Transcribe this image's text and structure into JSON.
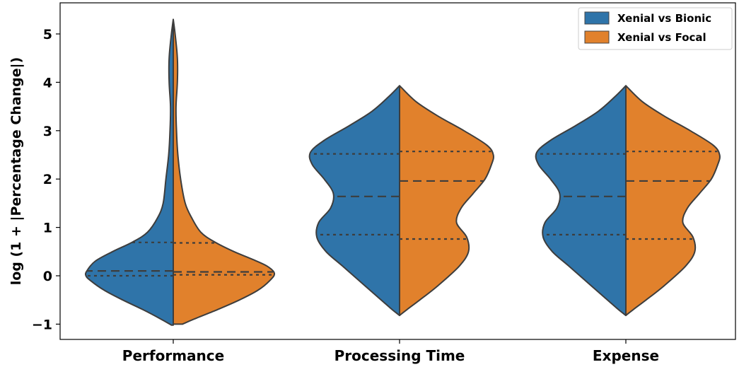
{
  "chart_data": {
    "type": "violin",
    "split": true,
    "ylabel": "log (1 + |Percentage Change|)",
    "xlabel": "",
    "ylim": [
      -1.05,
      5.6
    ],
    "yticks": [
      -1,
      0,
      1,
      2,
      3,
      4,
      5
    ],
    "ytick_labels": [
      "−1",
      "0",
      "1",
      "2",
      "3",
      "4",
      "5"
    ],
    "categories": [
      "Performance",
      "Processing Time",
      "Expense"
    ],
    "legend": {
      "placement": "top-right"
    },
    "series": [
      {
        "name": "Xenial vs Bionic",
        "color": "#2f74a9",
        "violins": [
          {
            "category": "Performance",
            "quartiles": {
              "q1": 0.0,
              "median": 0.1,
              "q3": 0.69
            },
            "profile": [
              [
                -1.02,
                0.02
              ],
              [
                -0.9,
                0.13
              ],
              [
                -0.7,
                0.33
              ],
              [
                -0.5,
                0.55
              ],
              [
                -0.3,
                0.75
              ],
              [
                -0.1,
                0.9
              ],
              [
                0.0,
                0.95
              ],
              [
                0.1,
                0.94
              ],
              [
                0.3,
                0.85
              ],
              [
                0.5,
                0.66
              ],
              [
                0.7,
                0.44
              ],
              [
                0.9,
                0.28
              ],
              [
                1.2,
                0.17
              ],
              [
                1.5,
                0.11
              ],
              [
                2.0,
                0.08
              ],
              [
                2.5,
                0.05
              ],
              [
                3.0,
                0.035
              ],
              [
                3.5,
                0.03
              ],
              [
                4.0,
                0.045
              ],
              [
                4.5,
                0.045
              ],
              [
                5.0,
                0.02
              ],
              [
                5.3,
                0.0
              ]
            ]
          },
          {
            "category": "Processing Time",
            "quartiles": {
              "q1": 0.85,
              "median": 1.64,
              "q3": 2.52
            },
            "profile": [
              [
                -0.82,
                0.0
              ],
              [
                -0.7,
                0.08
              ],
              [
                -0.5,
                0.2
              ],
              [
                -0.2,
                0.38
              ],
              [
                0.2,
                0.62
              ],
              [
                0.5,
                0.8
              ],
              [
                0.8,
                0.9
              ],
              [
                1.1,
                0.88
              ],
              [
                1.4,
                0.75
              ],
              [
                1.7,
                0.72
              ],
              [
                2.0,
                0.82
              ],
              [
                2.3,
                0.95
              ],
              [
                2.55,
                0.97
              ],
              [
                2.8,
                0.82
              ],
              [
                3.1,
                0.55
              ],
              [
                3.4,
                0.3
              ],
              [
                3.7,
                0.12
              ],
              [
                3.93,
                0.0
              ]
            ]
          },
          {
            "category": "Expense",
            "quartiles": {
              "q1": 0.85,
              "median": 1.64,
              "q3": 2.52
            },
            "profile": [
              [
                -0.82,
                0.0
              ],
              [
                -0.7,
                0.08
              ],
              [
                -0.5,
                0.2
              ],
              [
                -0.2,
                0.38
              ],
              [
                0.2,
                0.62
              ],
              [
                0.5,
                0.8
              ],
              [
                0.8,
                0.9
              ],
              [
                1.1,
                0.88
              ],
              [
                1.4,
                0.75
              ],
              [
                1.7,
                0.72
              ],
              [
                2.0,
                0.82
              ],
              [
                2.3,
                0.95
              ],
              [
                2.55,
                0.97
              ],
              [
                2.8,
                0.82
              ],
              [
                3.1,
                0.55
              ],
              [
                3.4,
                0.3
              ],
              [
                3.7,
                0.12
              ],
              [
                3.93,
                0.0
              ]
            ]
          }
        ]
      },
      {
        "name": "Xenial vs Focal",
        "color": "#e1812c",
        "violins": [
          {
            "category": "Performance",
            "quartiles": {
              "q1": 0.02,
              "median": 0.08,
              "q3": 0.68
            },
            "profile": [
              [
                -1.0,
                0.1
              ],
              [
                -0.9,
                0.22
              ],
              [
                -0.7,
                0.48
              ],
              [
                -0.5,
                0.72
              ],
              [
                -0.3,
                0.92
              ],
              [
                -0.1,
                1.05
              ],
              [
                0.05,
                1.1
              ],
              [
                0.2,
                1.02
              ],
              [
                0.35,
                0.85
              ],
              [
                0.5,
                0.66
              ],
              [
                0.7,
                0.45
              ],
              [
                0.9,
                0.3
              ],
              [
                1.2,
                0.2
              ],
              [
                1.5,
                0.13
              ],
              [
                2.0,
                0.08
              ],
              [
                2.5,
                0.05
              ],
              [
                3.0,
                0.035
              ],
              [
                3.5,
                0.03
              ],
              [
                4.0,
                0.045
              ],
              [
                4.5,
                0.045
              ],
              [
                5.0,
                0.02
              ],
              [
                5.3,
                0.0
              ]
            ]
          },
          {
            "category": "Processing Time",
            "quartiles": {
              "q1": 0.76,
              "median": 1.96,
              "q3": 2.57
            },
            "profile": [
              [
                -0.82,
                0.0
              ],
              [
                -0.7,
                0.08
              ],
              [
                -0.5,
                0.22
              ],
              [
                -0.2,
                0.42
              ],
              [
                0.2,
                0.65
              ],
              [
                0.5,
                0.75
              ],
              [
                0.8,
                0.73
              ],
              [
                1.1,
                0.62
              ],
              [
                1.4,
                0.67
              ],
              [
                1.7,
                0.8
              ],
              [
                2.0,
                0.93
              ],
              [
                2.3,
                1.0
              ],
              [
                2.5,
                1.02
              ],
              [
                2.7,
                0.95
              ],
              [
                3.0,
                0.7
              ],
              [
                3.3,
                0.42
              ],
              [
                3.6,
                0.18
              ],
              [
                3.93,
                0.0
              ]
            ]
          },
          {
            "category": "Expense",
            "quartiles": {
              "q1": 0.76,
              "median": 1.96,
              "q3": 2.57
            },
            "profile": [
              [
                -0.82,
                0.0
              ],
              [
                -0.7,
                0.08
              ],
              [
                -0.5,
                0.22
              ],
              [
                -0.2,
                0.42
              ],
              [
                0.2,
                0.65
              ],
              [
                0.5,
                0.75
              ],
              [
                0.8,
                0.73
              ],
              [
                1.1,
                0.62
              ],
              [
                1.4,
                0.67
              ],
              [
                1.7,
                0.8
              ],
              [
                2.0,
                0.93
              ],
              [
                2.3,
                1.0
              ],
              [
                2.5,
                1.02
              ],
              [
                2.7,
                0.95
              ],
              [
                3.0,
                0.7
              ],
              [
                3.3,
                0.42
              ],
              [
                3.6,
                0.18
              ],
              [
                3.93,
                0.0
              ]
            ]
          }
        ]
      }
    ]
  }
}
